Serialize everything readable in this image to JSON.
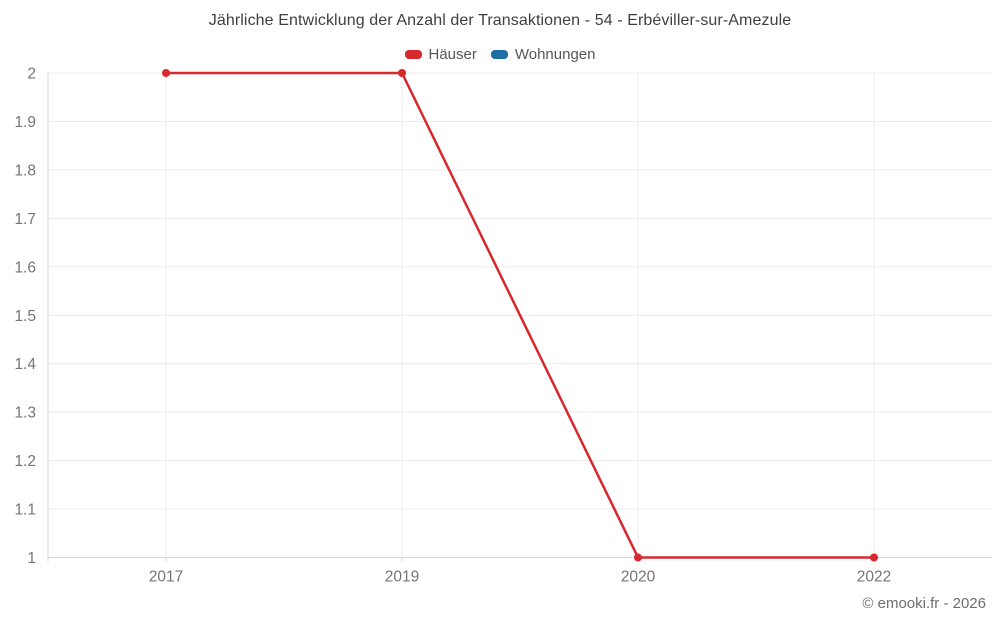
{
  "header": {
    "title": "Jährliche Entwicklung der Anzahl der Transaktionen - 54 - Erbéviller-sur-Amezule"
  },
  "footer": {
    "copyright": "© emooki.fr - 2026"
  },
  "chart_data": {
    "type": "line",
    "title": "Jährliche Entwicklung der Anzahl der Transaktionen - 54 - Erbéviller-sur-Amezule",
    "categories": [
      "2017",
      "2019",
      "2020",
      "2022"
    ],
    "series": [
      {
        "name": "Häuser",
        "color": "#d7282e",
        "values": [
          2,
          2,
          1,
          1
        ],
        "marker": "circle"
      },
      {
        "name": "Wohnungen",
        "color": "#1c6ea4",
        "values": [],
        "marker": "circle"
      }
    ],
    "xlabel": "",
    "ylabel": "",
    "ylim": [
      1,
      2
    ],
    "ytick_step": 0.1,
    "ytick_labels": [
      "1",
      "1.1",
      "1.2",
      "1.3",
      "1.4",
      "1.5",
      "1.6",
      "1.7",
      "1.8",
      "1.9",
      "2"
    ],
    "grid": true,
    "legend_position": "top",
    "style": {
      "grid_color": "#ececec",
      "axis_line_color": "#d4d4d4",
      "tick_label_color": "#757575",
      "title_color": "#3f3f3f",
      "legend_text_color": "#565656",
      "marker_radius": 4,
      "line_width": 2.5
    }
  }
}
